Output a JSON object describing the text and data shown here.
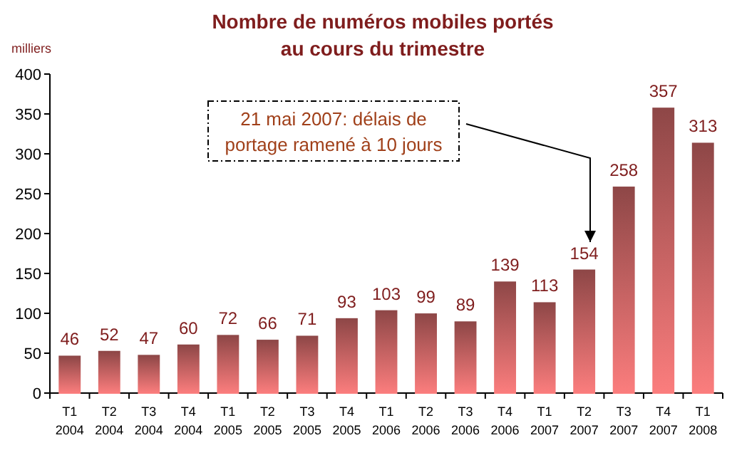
{
  "chart_data": {
    "type": "bar",
    "title": "Nombre de numéros mobiles portés au cours du trimestre",
    "ylabel": "milliers",
    "categories": [
      "T1 2004",
      "T2 2004",
      "T3 2004",
      "T4 2004",
      "T1 2005",
      "T2 2005",
      "T3 2005",
      "T4 2005",
      "T1 2006",
      "T2 2006",
      "T3 2006",
      "T4 2006",
      "T1 2007",
      "T2 2007",
      "T3 2007",
      "T4 2007",
      "T1 2008"
    ],
    "series": [
      {
        "color": "#fb7d7d",
        "values": [
          46,
          52,
          47,
          60,
          72,
          66,
          71,
          93,
          103,
          99,
          89,
          139,
          113,
          154,
          258,
          357,
          313
        ]
      }
    ],
    "ylim": [
      0,
      400
    ],
    "yticks": [
      0,
      50,
      100,
      150,
      200,
      250,
      300,
      350,
      400
    ],
    "grid": false,
    "data_labels": true,
    "annotations": [
      "21 mai 2007: délais de portage ramené à 10 jours"
    ]
  }
}
